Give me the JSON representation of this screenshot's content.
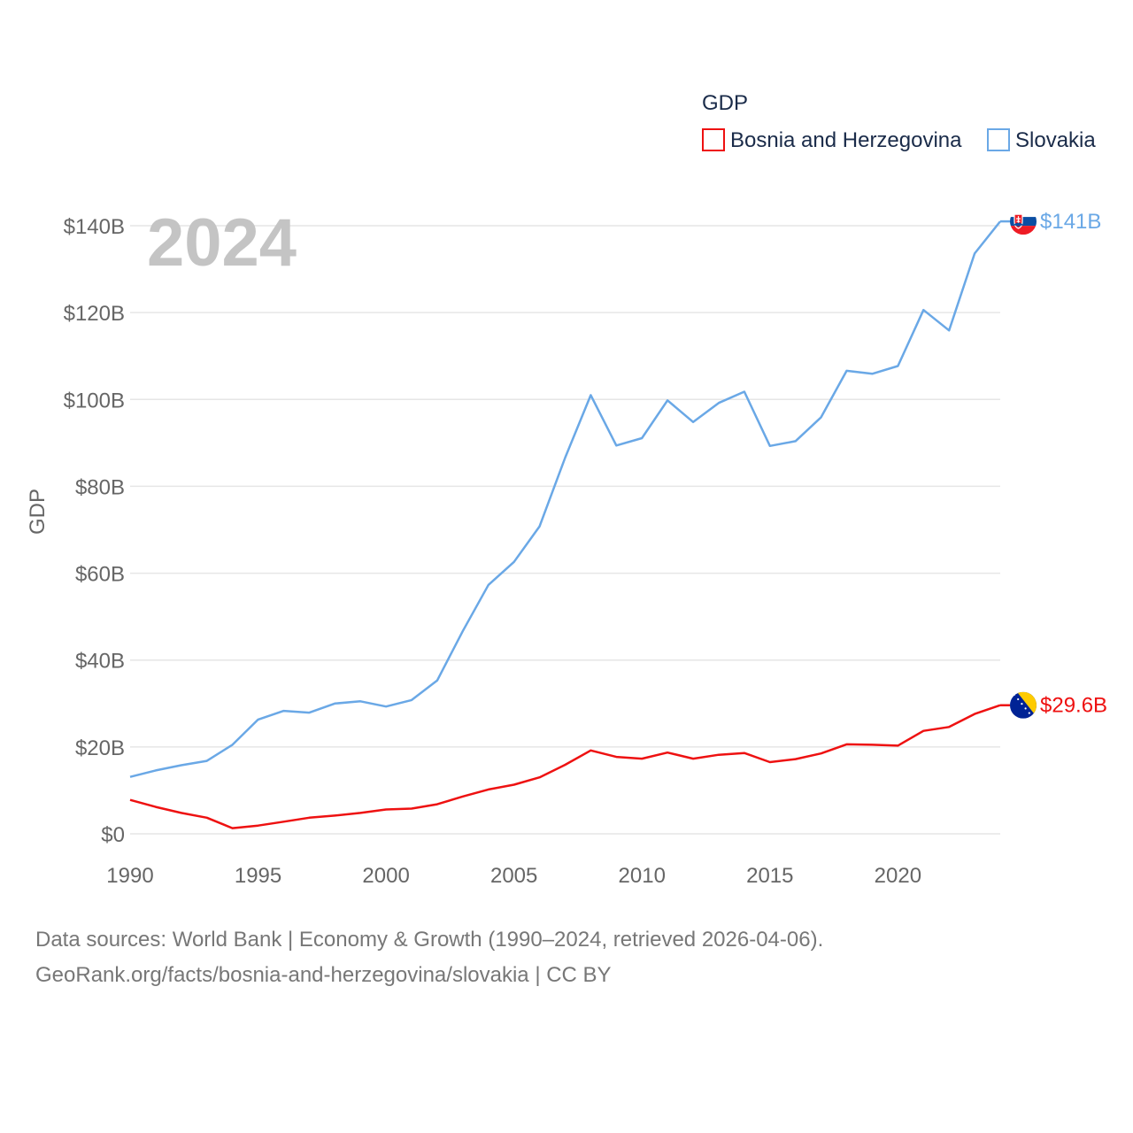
{
  "chart_data": {
    "type": "line",
    "year_label": "2024",
    "ylabel": "GDP",
    "legend_title": "GDP",
    "ylim": [
      0,
      140
    ],
    "xlim": [
      1990,
      2024
    ],
    "y_ticks": [
      0,
      20,
      40,
      60,
      80,
      100,
      120,
      140
    ],
    "y_tick_labels": [
      "$0",
      "$20B",
      "$40B",
      "$60B",
      "$80B",
      "$100B",
      "$120B",
      "$140B"
    ],
    "x_ticks": [
      1990,
      1995,
      2000,
      2005,
      2010,
      2015,
      2020
    ],
    "x_tick_labels": [
      "1990",
      "1995",
      "2000",
      "2005",
      "2010",
      "2015",
      "2020"
    ],
    "x": [
      1990,
      1991,
      1992,
      1993,
      1994,
      1995,
      1996,
      1997,
      1998,
      1999,
      2000,
      2001,
      2002,
      2003,
      2004,
      2005,
      2006,
      2007,
      2008,
      2009,
      2010,
      2011,
      2012,
      2013,
      2014,
      2015,
      2016,
      2017,
      2018,
      2019,
      2020,
      2021,
      2022,
      2023,
      2024
    ],
    "series": [
      {
        "name": "Bosnia and Herzegovina",
        "color": "#ee1111",
        "end_label": "$29.6B",
        "flag_icon": "bosnia-flag-icon",
        "values": [
          7.8,
          6.2,
          4.8,
          3.7,
          1.3,
          1.9,
          2.8,
          3.7,
          4.2,
          4.8,
          5.6,
          5.8,
          6.8,
          8.6,
          10.2,
          11.3,
          13.0,
          15.9,
          19.2,
          17.7,
          17.3,
          18.7,
          17.3,
          18.2,
          18.6,
          16.5,
          17.2,
          18.5,
          20.6,
          20.5,
          20.3,
          23.7,
          24.6,
          27.6,
          29.6
        ]
      },
      {
        "name": "Slovakia",
        "color": "#6aa8e6",
        "end_label": "$141B",
        "flag_icon": "slovakia-flag-icon",
        "values": [
          13.1,
          14.6,
          15.8,
          16.8,
          20.5,
          26.3,
          28.3,
          27.9,
          30.0,
          30.5,
          29.3,
          30.8,
          35.3,
          46.7,
          57.3,
          62.6,
          70.8,
          86.6,
          101.0,
          89.4,
          91.1,
          99.8,
          94.8,
          99.2,
          101.8,
          89.3,
          90.4,
          95.9,
          106.6,
          105.9,
          107.7,
          120.6,
          115.9,
          133.6,
          141.0
        ]
      }
    ]
  },
  "source": {
    "line1": "Data sources: World Bank | Economy & Growth (1990–2024, retrieved 2026-04-06).",
    "line2": "GeoRank.org/facts/bosnia-and-herzegovina/slovakia | CC BY"
  }
}
